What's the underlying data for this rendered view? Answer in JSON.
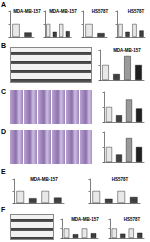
{
  "panels": [
    "A",
    "B",
    "C",
    "D",
    "E",
    "F"
  ],
  "chart_data": [
    {
      "type": "bar",
      "title": "MDA-MB-157",
      "categories": [
        null,
        null
      ],
      "values": [
        1,
        0.35
      ],
      "colors": [
        "#e8e8e8",
        "#404040"
      ],
      "ylim": [
        0,
        2
      ],
      "yticks": [
        0,
        1,
        2
      ],
      "tick_labels": false
    },
    {
      "type": "bar",
      "title": "MDA-MB-157",
      "categories": [
        null,
        null,
        null,
        null
      ],
      "values": [
        1,
        0.4,
        1,
        0.45
      ],
      "colors": [
        "#e8e8e8",
        "#404040",
        "#e8e8e8",
        "#404040"
      ],
      "ylim": [
        0,
        2
      ],
      "yticks": [
        0,
        1,
        2
      ],
      "tick_labels": false
    },
    {
      "type": "bar",
      "title": "HS578T",
      "categories": [
        null,
        null
      ],
      "values": [
        1,
        0.3
      ],
      "colors": [
        "#e8e8e8",
        "#404040"
      ],
      "ylim": [
        0,
        2
      ],
      "yticks": [
        0,
        1,
        2
      ],
      "tick_labels": false
    },
    {
      "type": "bar",
      "title": "HS578T",
      "categories": [
        null,
        null,
        null,
        null
      ],
      "values": [
        1,
        0.4,
        1,
        0.5
      ],
      "colors": [
        "#e8e8e8",
        "#404040",
        "#e8e8e8",
        "#404040"
      ],
      "ylim": [
        0,
        2
      ],
      "yticks": [
        0,
        1,
        2
      ],
      "tick_labels": false
    },
    {
      "type": "bar",
      "title": "MDA-MB-157",
      "categories": [
        null,
        null,
        null,
        null
      ],
      "values": [
        1,
        0.4,
        1.6,
        1
      ],
      "colors": [
        "#e8e8e8",
        "#404040",
        "#9a9a9a",
        "#202020"
      ],
      "ylim": [
        0,
        2
      ],
      "yticks": [
        0,
        1,
        2
      ],
      "tick_labels": false
    },
    {
      "type": "bar",
      "categories": [
        null,
        null,
        null,
        null
      ],
      "values": [
        1,
        0.45,
        1.5,
        0.9
      ],
      "colors": [
        "#e8e8e8",
        "#404040",
        "#9a9a9a",
        "#202020"
      ],
      "ylim": [
        0,
        2
      ],
      "yticks": [
        0,
        1,
        2
      ],
      "tick_labels": false
    },
    {
      "type": "bar",
      "categories": [
        null,
        null,
        null,
        null
      ],
      "values": [
        1,
        0.5,
        1.6,
        1
      ],
      "colors": [
        "#e8e8e8",
        "#404040",
        "#9a9a9a",
        "#202020"
      ],
      "ylim": [
        0,
        2
      ],
      "yticks": [
        0,
        1,
        2
      ],
      "tick_labels": false
    },
    {
      "type": "bar",
      "title": "MDA-MB-157",
      "categories": [
        null,
        null,
        null,
        null
      ],
      "values": [
        1,
        0.4,
        1,
        0.45
      ],
      "colors": [
        "#e8e8e8",
        "#404040",
        "#e8e8e8",
        "#404040"
      ],
      "ylim": [
        0,
        2
      ],
      "yticks": [
        0,
        1,
        2
      ],
      "tick_labels": false
    },
    {
      "type": "bar",
      "title": "HS578T",
      "categories": [
        null,
        null,
        null,
        null
      ],
      "values": [
        1,
        0.35,
        1,
        0.5
      ],
      "colors": [
        "#e8e8e8",
        "#404040",
        "#e8e8e8",
        "#404040"
      ],
      "ylim": [
        0,
        2
      ],
      "yticks": [
        0,
        1,
        2
      ],
      "tick_labels": false
    },
    {
      "type": "bar",
      "title": "MDA-MB-157",
      "categories": [
        null,
        null,
        null,
        null
      ],
      "values": [
        1,
        0.4,
        1,
        0.5
      ],
      "colors": [
        "#e8e8e8",
        "#404040",
        "#e8e8e8",
        "#404040"
      ],
      "ylim": [
        0,
        2
      ],
      "yticks": [
        0,
        1,
        2
      ],
      "tick_labels": false
    },
    {
      "type": "bar",
      "title": "HS578T",
      "categories": [
        null,
        null,
        null,
        null
      ],
      "values": [
        1,
        0.45,
        1,
        0.55
      ],
      "colors": [
        "#e8e8e8",
        "#404040",
        "#e8e8e8",
        "#404040"
      ],
      "ylim": [
        0,
        2
      ],
      "yticks": [
        0,
        1,
        2
      ],
      "tick_labels": false
    }
  ]
}
